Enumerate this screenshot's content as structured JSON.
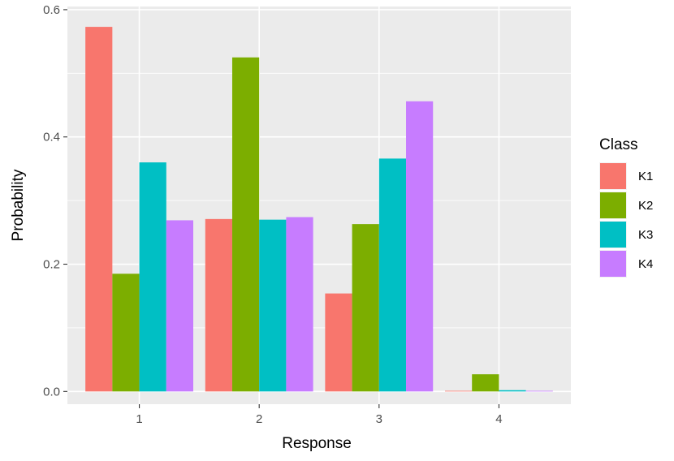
{
  "chart_data": {
    "type": "bar",
    "xlabel": "Response",
    "ylabel": "Probability",
    "categories": [
      "1",
      "2",
      "3",
      "4"
    ],
    "ylim": [
      -0.02,
      0.605
    ],
    "yticks": [
      0.0,
      0.2,
      0.4,
      0.6
    ],
    "ytick_labels": [
      "0.0",
      "0.2",
      "0.4",
      "0.6"
    ],
    "grid": true,
    "legend": {
      "title": "Class",
      "placement": "right"
    },
    "series": [
      {
        "name": "K1",
        "color": "#F8766D",
        "values": [
          0.573,
          0.271,
          0.154,
          0.001
        ]
      },
      {
        "name": "K2",
        "color": "#7CAE00",
        "values": [
          0.185,
          0.525,
          0.263,
          0.027
        ]
      },
      {
        "name": "K3",
        "color": "#00BFC4",
        "values": [
          0.36,
          0.27,
          0.366,
          0.002
        ]
      },
      {
        "name": "K4",
        "color": "#C77CFF",
        "values": [
          0.269,
          0.274,
          0.456,
          0.001
        ]
      }
    ]
  }
}
